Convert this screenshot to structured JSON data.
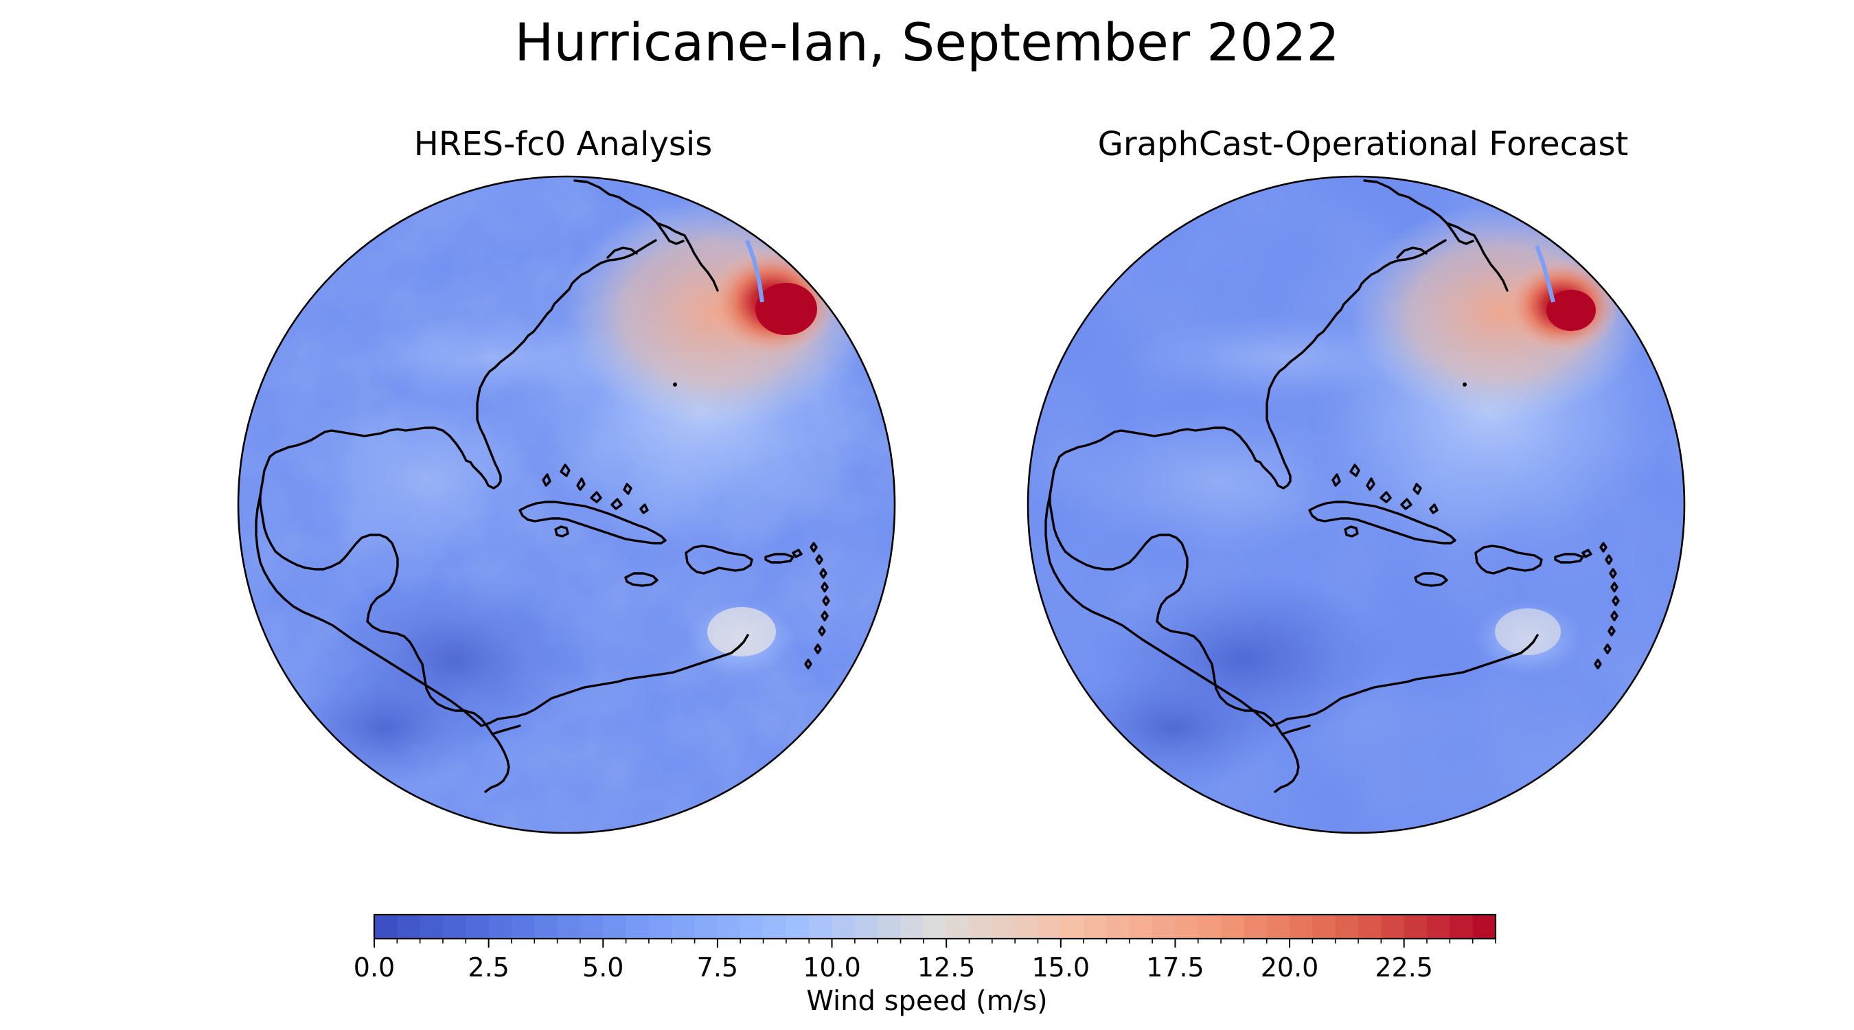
{
  "figure": {
    "title": "Hurricane-Ian, September 2022"
  },
  "panels": [
    {
      "title": "HRES-fc0 Analysis"
    },
    {
      "title": "GraphCast-Operational Forecast"
    }
  ],
  "colorbar": {
    "label": "Wind speed (m/s)",
    "colormap": "coolwarm",
    "vmin": 0.0,
    "vmax": 24.5,
    "ticks": [
      "0.0",
      "2.5",
      "5.0",
      "7.5",
      "10.0",
      "12.5",
      "15.0",
      "17.5",
      "20.0",
      "22.5"
    ],
    "colors": {
      "low": "#3b4cc0",
      "mid": "#dddddd",
      "high": "#b40426"
    }
  },
  "map": {
    "projection": "orthographic",
    "region": "Western North Atlantic, Gulf of Mexico and Caribbean",
    "max_wind_location": "off Nova Scotia"
  }
}
